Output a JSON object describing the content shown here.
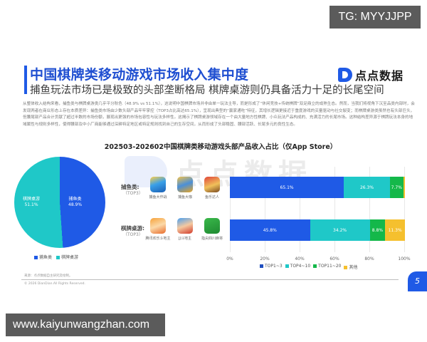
{
  "overlays": {
    "tg_badge": "TG: MYYJJPP",
    "url_badge": "www.kaiyunwangzhan.com"
  },
  "slide": {
    "title": "中国棋牌类移动游戏市场收入集中度",
    "subtitle": "捕鱼玩法市场已是极致的头部垄断格局 棋牌桌游则仍具备活力十足的长尾空间",
    "logo_text": "点点数据",
    "body_text": "从整体收入结构来看，捕鱼类与棋牌桌游类几乎平分秋色（48.9% vs 51.1%），这说明中国棋牌市场并非由单一玩法主导，而是形成了“休闲竞技+传统棋牌”双足鼎立的成熟生态。然而，当我们将视角下沉至品类内部时，会发现两者在商业形态上存在本质差异：捕鱼类市场由少数头部产品牢牢掌控（TOP3占比高达65.1%），呈现出典型的“赢家通吃”特征，其增长逻辑更接近于重度游戏的买量驱动与社交裂变；而棋牌桌游类虽然也有头部巨头，但腰尾部产品合计贡献了超过半数的市场份额，展现出更强的市场包容性与玩法多样性。这揭示了棋牌桌游领域存在一个由大量地方性棋牌、小众玩法产品构成的、充满活力的长尾市场。这种结构差异源于棋牌玩法本身的地域属性与规则多样性，使得腰部及中小厂商能够通过深耕特定地区或特定规则找到自己的生存空间，从而形成了头部稳固、腰部活跃、长尾多元的良性生态。",
    "source": "来源：点点数据自主研究及绘制。",
    "copyright": "© 2026 DianDian.All Rights Reserved.",
    "page_number": "5",
    "colors": {
      "brand_blue": "#1f5ae6",
      "teal": "#1fc8c8",
      "green": "#14b84a",
      "yellow": "#f5c02e"
    }
  },
  "rows": [
    {
      "label": "捕鱼类:",
      "sub": "（TOP3）",
      "apps": [
        "捕鱼大作战",
        "捕鱼大咖",
        "鱼乐达人"
      ]
    },
    {
      "label": "棋牌桌游:",
      "sub": "（TOP3）",
      "apps": [
        "腾讯欢乐斗地主",
        "JJ斗地主",
        "指尖四川麻将"
      ]
    }
  ],
  "chart_data": [
    {
      "type": "pie",
      "title": "",
      "categories": [
        "捕鱼类",
        "棋牌桌游"
      ],
      "values": [
        48.9,
        51.1
      ],
      "labels": [
        "捕鱼类\n48.9%",
        "棋牌桌游\n51.1%"
      ],
      "colors": [
        "#1f5ae6",
        "#1fc8c8"
      ],
      "legend": [
        "捕鱼类",
        "棋牌桌游"
      ],
      "legend_position": "bottom"
    },
    {
      "type": "bar",
      "orientation": "horizontal",
      "stacked": true,
      "title": "202503-202602中国棋牌类移动游戏头部产品收入占比（仅App Store）",
      "categories": [
        "捕鱼类 (TOP3)",
        "棋牌桌游 (TOP3)"
      ],
      "series": [
        {
          "name": "TOP1~3",
          "values": [
            65.1,
            45.8
          ],
          "color": "#1f5ae6"
        },
        {
          "name": "TOP4~10",
          "values": [
            26.3,
            34.2
          ],
          "color": "#1fc8c8"
        },
        {
          "name": "TOP11~20",
          "values": [
            7.7,
            8.8
          ],
          "color": "#14b84a"
        },
        {
          "name": "其他",
          "values": [
            0.9,
            11.3
          ],
          "color": "#f5c02e"
        }
      ],
      "segment_labels": [
        [
          "65.1%",
          "26.3%",
          "7.7%",
          ""
        ],
        [
          "45.8%",
          "34.2%",
          "8.8%",
          "11.3%"
        ]
      ],
      "xticks": [
        "0%",
        "20%",
        "40%",
        "60%",
        "80%",
        "100%"
      ],
      "xlim": [
        0,
        100
      ],
      "grid": true,
      "legend_position": "bottom"
    }
  ]
}
